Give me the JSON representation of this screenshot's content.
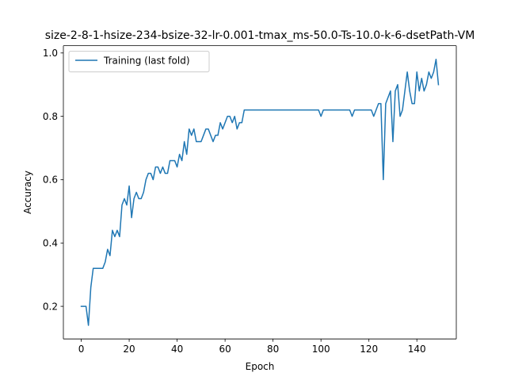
{
  "chart_data": {
    "type": "line",
    "title": "size-2-8-1-hsize-234-bsize-32-lr-0.001-tmax_ms-50.0-Ts-10.0-k-6-dsetPath-VM",
    "xlabel": "Epoch",
    "ylabel": "Accuracy",
    "xlim": [
      -7.45,
      156.45
    ],
    "ylim": [
      0.097,
      1.023
    ],
    "xticks": [
      0,
      20,
      40,
      60,
      80,
      100,
      120,
      140
    ],
    "yticks": [
      0.2,
      0.4,
      0.6,
      0.8,
      1.0
    ],
    "xtick_labels": [
      "0",
      "20",
      "40",
      "60",
      "80",
      "100",
      "120",
      "140"
    ],
    "ytick_labels": [
      "0.2",
      "0.4",
      "0.6",
      "0.8",
      "1.0"
    ],
    "grid": false,
    "legend_position": "upper-left",
    "series": [
      {
        "name": "Training (last fold)",
        "color": "#1f77b4",
        "y": [
          0.2,
          0.2,
          0.2,
          0.14,
          0.26,
          0.32,
          0.32,
          0.32,
          0.32,
          0.32,
          0.34,
          0.38,
          0.36,
          0.44,
          0.42,
          0.44,
          0.42,
          0.52,
          0.54,
          0.52,
          0.58,
          0.48,
          0.54,
          0.56,
          0.54,
          0.54,
          0.56,
          0.6,
          0.62,
          0.62,
          0.6,
          0.64,
          0.64,
          0.62,
          0.64,
          0.62,
          0.62,
          0.66,
          0.66,
          0.66,
          0.64,
          0.68,
          0.66,
          0.72,
          0.68,
          0.76,
          0.74,
          0.76,
          0.72,
          0.72,
          0.72,
          0.74,
          0.76,
          0.76,
          0.74,
          0.72,
          0.74,
          0.74,
          0.78,
          0.76,
          0.78,
          0.8,
          0.8,
          0.78,
          0.8,
          0.76,
          0.78,
          0.78,
          0.82,
          0.82,
          0.82,
          0.82,
          0.82,
          0.82,
          0.82,
          0.82,
          0.82,
          0.82,
          0.82,
          0.82,
          0.82,
          0.82,
          0.82,
          0.82,
          0.82,
          0.82,
          0.82,
          0.82,
          0.82,
          0.82,
          0.82,
          0.82,
          0.82,
          0.82,
          0.82,
          0.82,
          0.82,
          0.82,
          0.82,
          0.82,
          0.8,
          0.82,
          0.82,
          0.82,
          0.82,
          0.82,
          0.82,
          0.82,
          0.82,
          0.82,
          0.82,
          0.82,
          0.82,
          0.8,
          0.82,
          0.82,
          0.82,
          0.82,
          0.82,
          0.82,
          0.82,
          0.82,
          0.8,
          0.82,
          0.84,
          0.84,
          0.6,
          0.84,
          0.86,
          0.88,
          0.72,
          0.88,
          0.9,
          0.8,
          0.82,
          0.88,
          0.94,
          0.88,
          0.84,
          0.84,
          0.94,
          0.88,
          0.92,
          0.88,
          0.9,
          0.94,
          0.92,
          0.94,
          0.98,
          0.9
        ]
      }
    ]
  }
}
